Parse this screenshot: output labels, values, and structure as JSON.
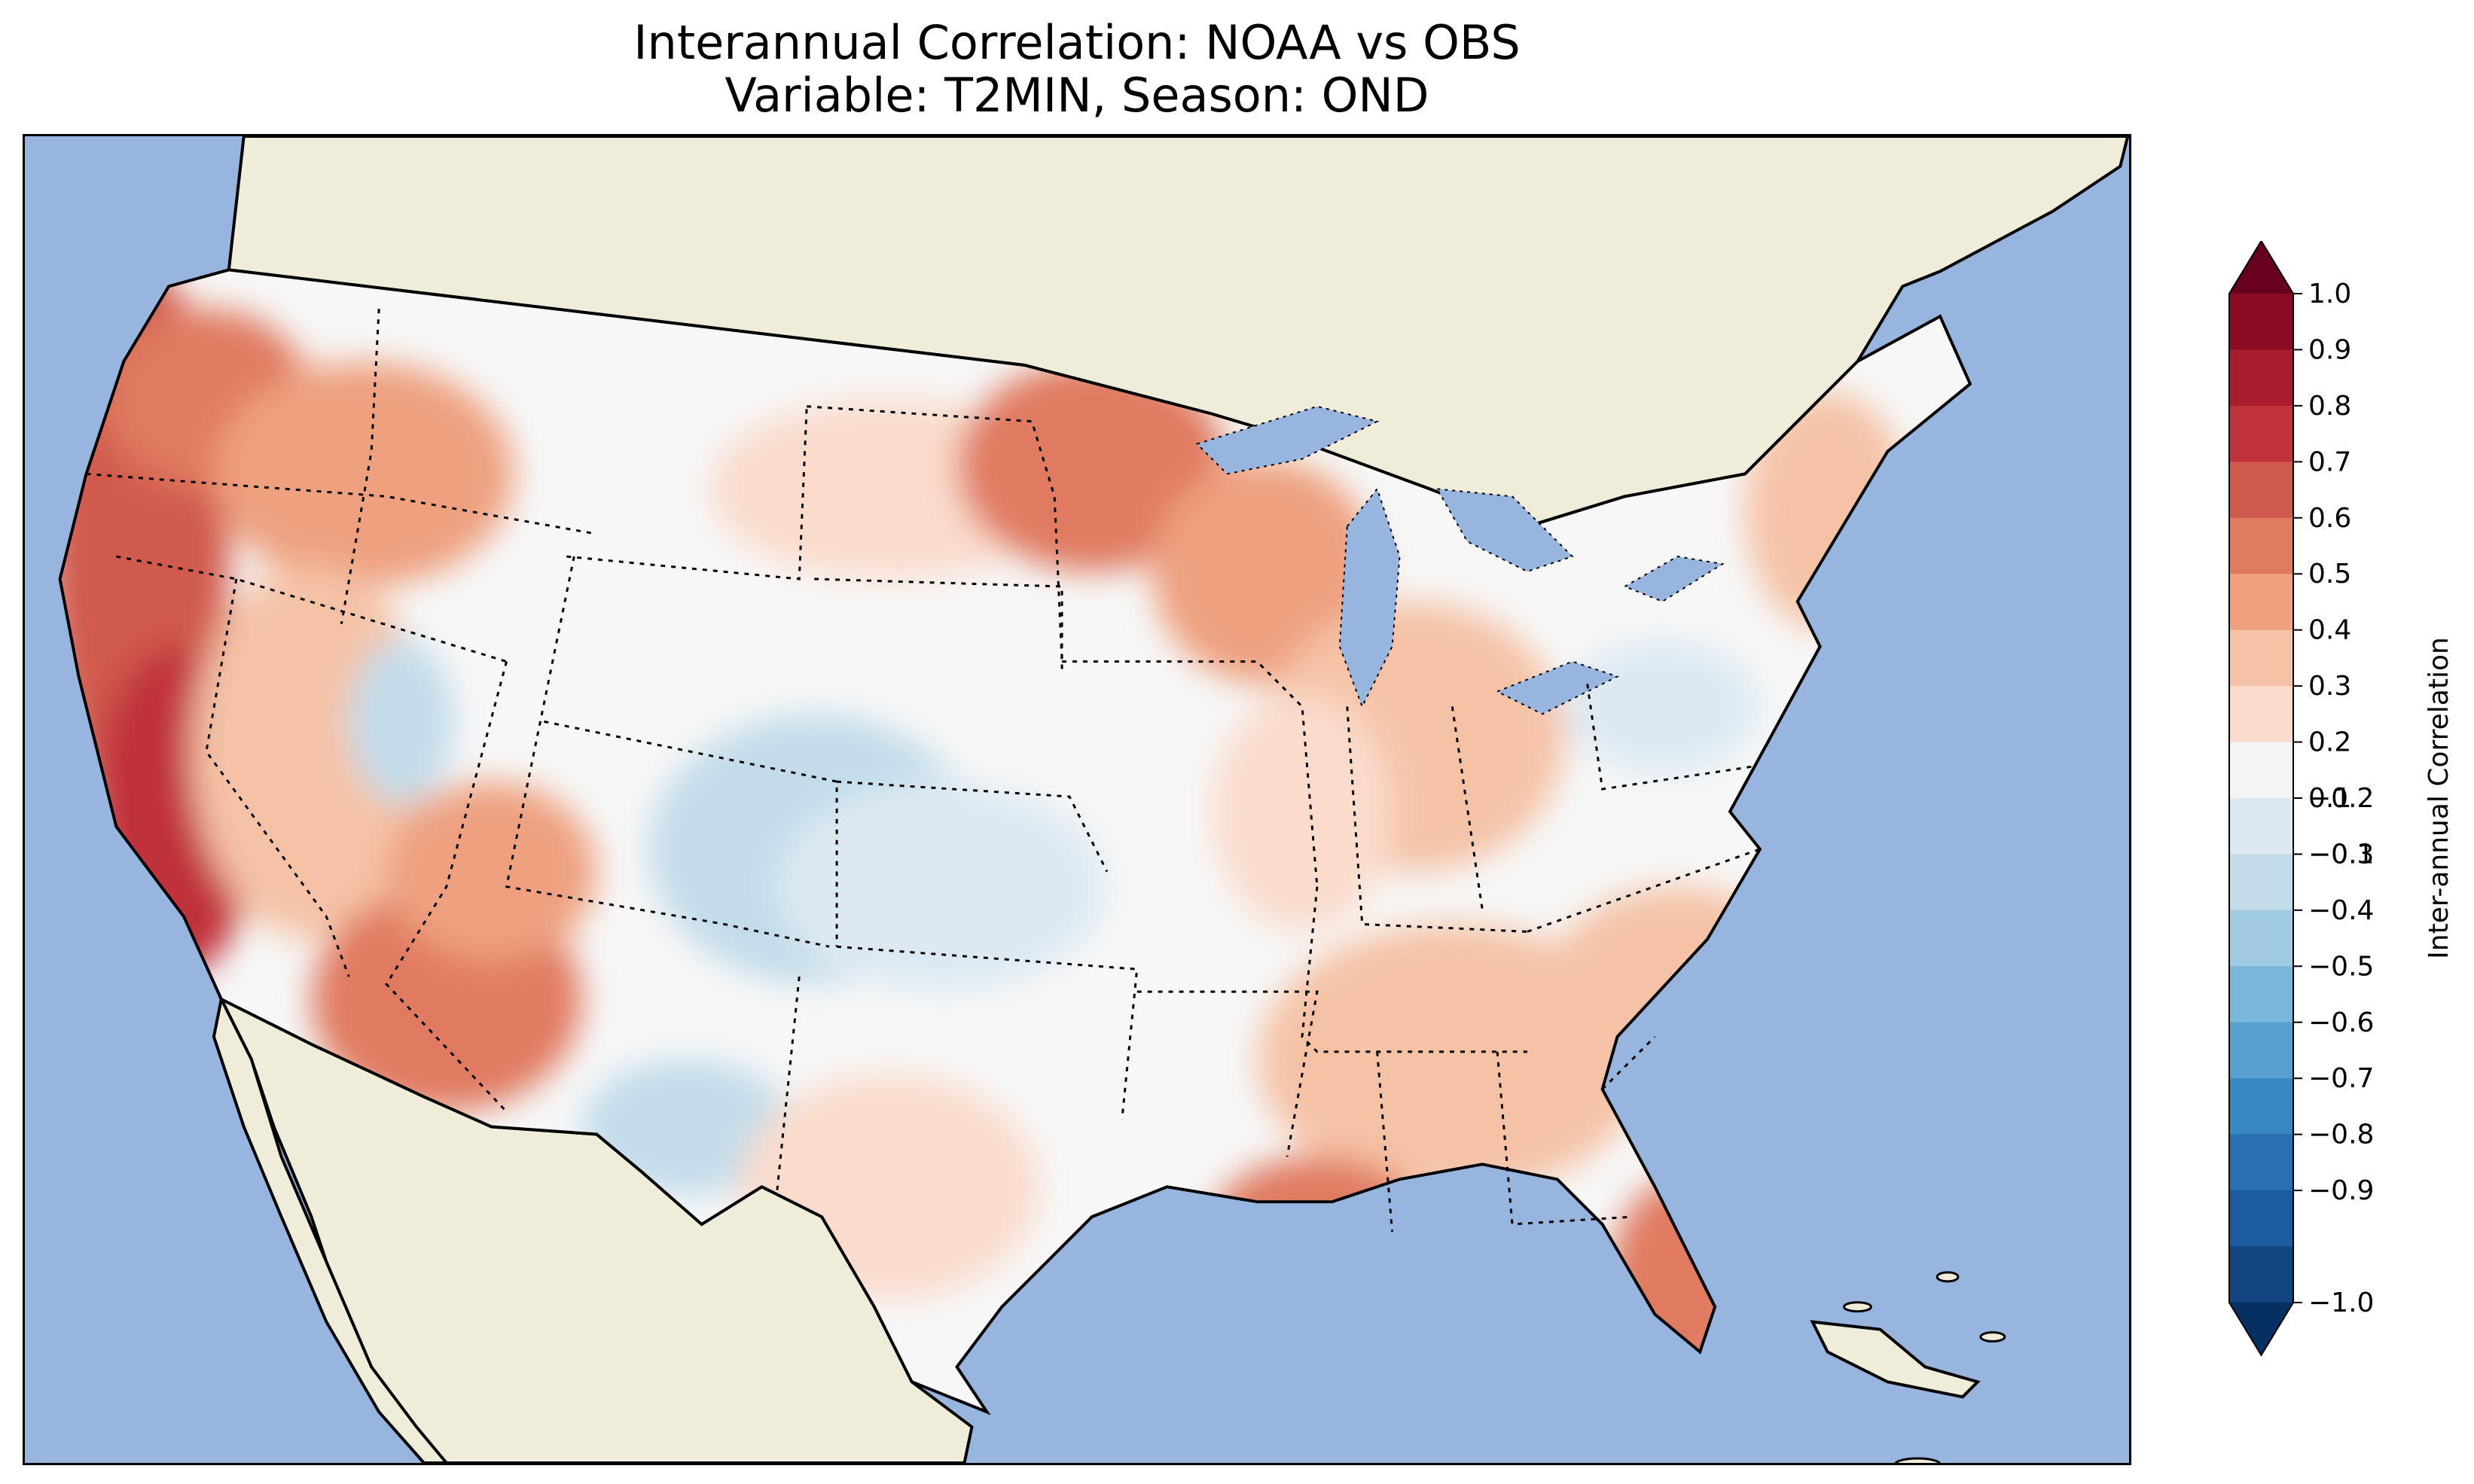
{
  "title": {
    "line1": "Interannual Correlation: NOAA vs OBS",
    "line2": "Variable: T2MIN, Season: OND"
  },
  "colorbar": {
    "label": "Inter-annual Correlation",
    "ticks": [
      "1.0",
      "0.9",
      "0.8",
      "0.7",
      "0.6",
      "0.5",
      "0.4",
      "0.3",
      "0.2",
      "0.1",
      "−0.1",
      "−0.2",
      "−0.3",
      "−0.4",
      "−0.5",
      "−0.6",
      "−0.7",
      "−0.8",
      "−0.9",
      "−1.0"
    ],
    "colors": [
      "#8b0a24",
      "#a81c2e",
      "#c0333a",
      "#d05a4e",
      "#e07a60",
      "#eea07f",
      "#f5c2a6",
      "#fadbcc",
      "#f4f4f4",
      "#dde9f2",
      "#c2dcea",
      "#9fcae1",
      "#7ab6d9",
      "#569fcf",
      "#3987c0",
      "#2a6fb0",
      "#1d5b9f",
      "#12457f"
    ],
    "over_color": "#67001f",
    "under_color": "#053061"
  },
  "map": {
    "ocean_color": "#98b5df",
    "land_color": "#efedda"
  }
}
